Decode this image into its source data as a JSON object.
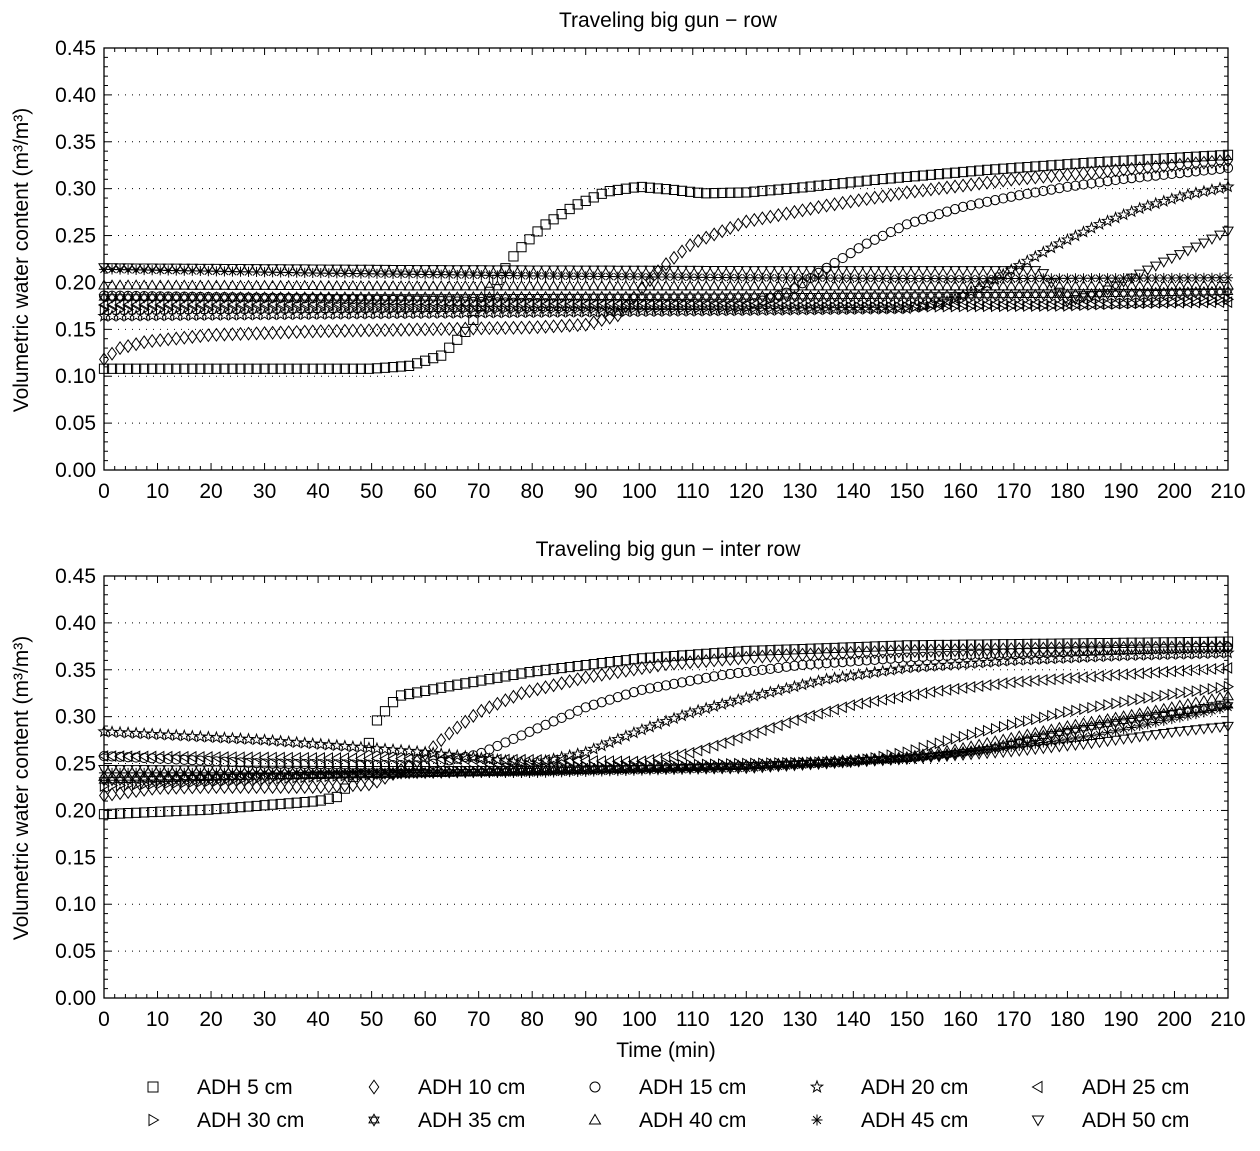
{
  "chart_data": [
    {
      "type": "scatter",
      "title": "Traveling big gun − row",
      "xlabel": "",
      "ylabel": "Volumetric water content (m³/m³)",
      "xlim": [
        0,
        210
      ],
      "ylim": [
        0,
        0.45
      ],
      "x_ticks": [
        "0",
        "10",
        "20",
        "30",
        "40",
        "50",
        "60",
        "70",
        "80",
        "90",
        "100",
        "110",
        "120",
        "130",
        "140",
        "150",
        "160",
        "170",
        "180",
        "190",
        "200",
        "210"
      ],
      "y_ticks": [
        "0.00",
        "0.05",
        "0.10",
        "0.15",
        "0.20",
        "0.25",
        "0.30",
        "0.35",
        "0.40",
        "0.45"
      ],
      "grid": "horizontal dotted",
      "series": [
        {
          "name": "ADH 5 cm",
          "marker": "square",
          "points": [
            [
              0,
              0.108
            ],
            [
              50,
              0.108
            ],
            [
              57,
              0.111
            ],
            [
              63,
              0.122
            ],
            [
              68,
              0.15
            ],
            [
              72,
              0.19
            ],
            [
              77,
              0.232
            ],
            [
              82,
              0.26
            ],
            [
              88,
              0.282
            ],
            [
              94,
              0.297
            ],
            [
              100,
              0.302
            ],
            [
              106,
              0.299
            ],
            [
              112,
              0.295
            ],
            [
              120,
              0.296
            ],
            [
              130,
              0.301
            ],
            [
              145,
              0.31
            ],
            [
              165,
              0.32
            ],
            [
              185,
              0.328
            ],
            [
              210,
              0.336
            ]
          ]
        },
        {
          "name": "ADH 10 cm",
          "marker": "diamond",
          "points": [
            [
              0,
              0.118
            ],
            [
              3,
              0.13
            ],
            [
              8,
              0.137
            ],
            [
              20,
              0.144
            ],
            [
              40,
              0.148
            ],
            [
              60,
              0.15
            ],
            [
              80,
              0.152
            ],
            [
              90,
              0.155
            ],
            [
              96,
              0.165
            ],
            [
              100,
              0.19
            ],
            [
              104,
              0.215
            ],
            [
              110,
              0.242
            ],
            [
              120,
              0.265
            ],
            [
              135,
              0.282
            ],
            [
              150,
              0.296
            ],
            [
              170,
              0.31
            ],
            [
              190,
              0.32
            ],
            [
              210,
              0.33
            ]
          ]
        },
        {
          "name": "ADH 15 cm",
          "marker": "circle",
          "points": [
            [
              0,
              0.186
            ],
            [
              40,
              0.183
            ],
            [
              80,
              0.178
            ],
            [
              120,
              0.175
            ],
            [
              128,
              0.19
            ],
            [
              134,
              0.212
            ],
            [
              142,
              0.24
            ],
            [
              150,
              0.262
            ],
            [
              160,
              0.28
            ],
            [
              170,
              0.292
            ],
            [
              180,
              0.302
            ],
            [
              190,
              0.31
            ],
            [
              200,
              0.316
            ],
            [
              210,
              0.322
            ]
          ]
        },
        {
          "name": "ADH 20 cm",
          "marker": "star5",
          "points": [
            [
              0,
              0.164
            ],
            [
              60,
              0.167
            ],
            [
              120,
              0.17
            ],
            [
              150,
              0.172
            ],
            [
              158,
              0.18
            ],
            [
              164,
              0.195
            ],
            [
              170,
              0.215
            ],
            [
              178,
              0.24
            ],
            [
              186,
              0.262
            ],
            [
              194,
              0.28
            ],
            [
              202,
              0.293
            ],
            [
              210,
              0.302
            ]
          ]
        },
        {
          "name": "ADH 25 cm",
          "marker": "tri-left",
          "points": [
            [
              0,
              0.176
            ],
            [
              60,
              0.176
            ],
            [
              120,
              0.176
            ],
            [
              180,
              0.177
            ],
            [
              210,
              0.179
            ]
          ]
        },
        {
          "name": "ADH 30 cm",
          "marker": "tri-right",
          "points": [
            [
              0,
              0.171
            ],
            [
              60,
              0.172
            ],
            [
              120,
              0.173
            ],
            [
              180,
              0.175
            ],
            [
              210,
              0.182
            ]
          ]
        },
        {
          "name": "ADH 35 cm",
          "marker": "star6",
          "points": [
            [
              0,
              0.184
            ],
            [
              60,
              0.184
            ],
            [
              120,
              0.185
            ],
            [
              180,
              0.187
            ],
            [
              210,
              0.19
            ]
          ]
        },
        {
          "name": "ADH 40 cm",
          "marker": "tri-up",
          "points": [
            [
              0,
              0.197
            ],
            [
              60,
              0.196
            ],
            [
              120,
              0.196
            ],
            [
              180,
              0.196
            ],
            [
              210,
              0.197
            ]
          ]
        },
        {
          "name": "ADH 45 cm",
          "marker": "asterisk",
          "points": [
            [
              0,
              0.214
            ],
            [
              40,
              0.21
            ],
            [
              80,
              0.207
            ],
            [
              120,
              0.205
            ],
            [
              160,
              0.204
            ],
            [
              210,
              0.205
            ]
          ]
        },
        {
          "name": "ADH 50 cm",
          "marker": "tri-down",
          "points": [
            [
              0,
              0.216
            ],
            [
              60,
              0.214
            ],
            [
              120,
              0.213
            ],
            [
              175,
              0.213
            ],
            [
              180,
              0.18
            ],
            [
              186,
              0.188
            ],
            [
              192,
              0.205
            ],
            [
              198,
              0.222
            ],
            [
              204,
              0.238
            ],
            [
              210,
              0.255
            ]
          ]
        }
      ]
    },
    {
      "type": "scatter",
      "title": "Traveling big gun − inter row",
      "xlabel": "Time (min)",
      "ylabel": "Volumetric water content (m³/m³)",
      "xlim": [
        0,
        210
      ],
      "ylim": [
        0,
        0.45
      ],
      "x_ticks": [
        "0",
        "10",
        "20",
        "30",
        "40",
        "50",
        "60",
        "70",
        "80",
        "90",
        "100",
        "110",
        "120",
        "130",
        "140",
        "150",
        "160",
        "170",
        "180",
        "190",
        "200",
        "210"
      ],
      "y_ticks": [
        "0.00",
        "0.05",
        "0.10",
        "0.15",
        "0.20",
        "0.25",
        "0.30",
        "0.35",
        "0.40",
        "0.45"
      ],
      "grid": "horizontal dotted",
      "series": [
        {
          "name": "ADH 5 cm",
          "marker": "square",
          "points": [
            [
              0,
              0.196
            ],
            [
              20,
              0.201
            ],
            [
              40,
              0.21
            ],
            [
              44,
              0.215
            ],
            [
              48,
              0.248
            ],
            [
              51,
              0.296
            ],
            [
              55,
              0.322
            ],
            [
              65,
              0.333
            ],
            [
              80,
              0.348
            ],
            [
              100,
              0.362
            ],
            [
              120,
              0.37
            ],
            [
              150,
              0.376
            ],
            [
              180,
              0.378
            ],
            [
              210,
              0.38
            ]
          ]
        },
        {
          "name": "ADH 10 cm",
          "marker": "diamond",
          "points": [
            [
              0,
              0.216
            ],
            [
              10,
              0.224
            ],
            [
              20,
              0.225
            ],
            [
              40,
              0.225
            ],
            [
              50,
              0.228
            ],
            [
              58,
              0.25
            ],
            [
              64,
              0.28
            ],
            [
              70,
              0.305
            ],
            [
              78,
              0.325
            ],
            [
              90,
              0.342
            ],
            [
              105,
              0.356
            ],
            [
              125,
              0.365
            ],
            [
              150,
              0.37
            ],
            [
              180,
              0.373
            ],
            [
              210,
              0.374
            ]
          ]
        },
        {
          "name": "ADH 15 cm",
          "marker": "circle",
          "points": [
            [
              0,
              0.258
            ],
            [
              30,
              0.25
            ],
            [
              60,
              0.248
            ],
            [
              70,
              0.26
            ],
            [
              80,
              0.285
            ],
            [
              90,
              0.31
            ],
            [
              100,
              0.328
            ],
            [
              115,
              0.344
            ],
            [
              130,
              0.355
            ],
            [
              150,
              0.363
            ],
            [
              175,
              0.369
            ],
            [
              210,
              0.374
            ]
          ]
        },
        {
          "name": "ADH 20 cm",
          "marker": "star5",
          "points": [
            [
              0,
              0.284
            ],
            [
              30,
              0.275
            ],
            [
              60,
              0.262
            ],
            [
              80,
              0.25
            ],
            [
              90,
              0.262
            ],
            [
              100,
              0.285
            ],
            [
              110,
              0.305
            ],
            [
              120,
              0.32
            ],
            [
              135,
              0.34
            ],
            [
              150,
              0.352
            ],
            [
              170,
              0.36
            ],
            [
              190,
              0.365
            ],
            [
              210,
              0.368
            ]
          ]
        },
        {
          "name": "ADH 25 cm",
          "marker": "tri-left",
          "points": [
            [
              0,
              0.258
            ],
            [
              40,
              0.256
            ],
            [
              80,
              0.254
            ],
            [
              100,
              0.252
            ],
            [
              110,
              0.262
            ],
            [
              120,
              0.28
            ],
            [
              130,
              0.298
            ],
            [
              140,
              0.313
            ],
            [
              155,
              0.327
            ],
            [
              170,
              0.337
            ],
            [
              190,
              0.345
            ],
            [
              210,
              0.352
            ]
          ]
        },
        {
          "name": "ADH 30 cm",
          "marker": "tri-right",
          "points": [
            [
              0,
              0.226
            ],
            [
              40,
              0.236
            ],
            [
              80,
              0.245
            ],
            [
              120,
              0.25
            ],
            [
              140,
              0.252
            ],
            [
              150,
              0.262
            ],
            [
              160,
              0.278
            ],
            [
              170,
              0.292
            ],
            [
              180,
              0.305
            ],
            [
              195,
              0.32
            ],
            [
              210,
              0.332
            ]
          ]
        },
        {
          "name": "ADH 35 cm",
          "marker": "star6",
          "points": [
            [
              0,
              0.232
            ],
            [
              40,
              0.238
            ],
            [
              80,
              0.242
            ],
            [
              120,
              0.248
            ],
            [
              150,
              0.255
            ],
            [
              165,
              0.265
            ],
            [
              175,
              0.279
            ],
            [
              185,
              0.29
            ],
            [
              197,
              0.302
            ],
            [
              210,
              0.312
            ]
          ]
        },
        {
          "name": "ADH 40 cm",
          "marker": "tri-up",
          "points": [
            [
              0,
              0.236
            ],
            [
              40,
              0.238
            ],
            [
              80,
              0.242
            ],
            [
              120,
              0.248
            ],
            [
              150,
              0.257
            ],
            [
              160,
              0.266
            ],
            [
              170,
              0.278
            ],
            [
              180,
              0.29
            ],
            [
              195,
              0.305
            ],
            [
              210,
              0.322
            ]
          ]
        },
        {
          "name": "ADH 45 cm",
          "marker": "asterisk",
          "points": [
            [
              0,
              0.24
            ],
            [
              40,
              0.24
            ],
            [
              80,
              0.24
            ],
            [
              120,
              0.245
            ],
            [
              150,
              0.255
            ],
            [
              170,
              0.268
            ],
            [
              185,
              0.28
            ],
            [
              200,
              0.298
            ],
            [
              210,
              0.31
            ]
          ]
        },
        {
          "name": "ADH 50 cm",
          "marker": "tri-down",
          "points": [
            [
              0,
              0.244
            ],
            [
              40,
              0.243
            ],
            [
              80,
              0.243
            ],
            [
              120,
              0.245
            ],
            [
              150,
              0.255
            ],
            [
              170,
              0.263
            ],
            [
              185,
              0.272
            ],
            [
              200,
              0.284
            ],
            [
              210,
              0.29
            ]
          ]
        }
      ]
    }
  ],
  "legend": {
    "placement": "bottom",
    "items": [
      {
        "label": "ADH 5 cm",
        "marker": "square"
      },
      {
        "label": "ADH 10 cm",
        "marker": "diamond"
      },
      {
        "label": "ADH 15 cm",
        "marker": "circle"
      },
      {
        "label": "ADH 20 cm",
        "marker": "star5"
      },
      {
        "label": "ADH 25 cm",
        "marker": "tri-left"
      },
      {
        "label": "ADH 30 cm",
        "marker": "tri-right"
      },
      {
        "label": "ADH 35 cm",
        "marker": "star6"
      },
      {
        "label": "ADH 40 cm",
        "marker": "tri-up"
      },
      {
        "label": "ADH 45 cm",
        "marker": "asterisk"
      },
      {
        "label": "ADH 50 cm",
        "marker": "tri-down"
      }
    ]
  }
}
